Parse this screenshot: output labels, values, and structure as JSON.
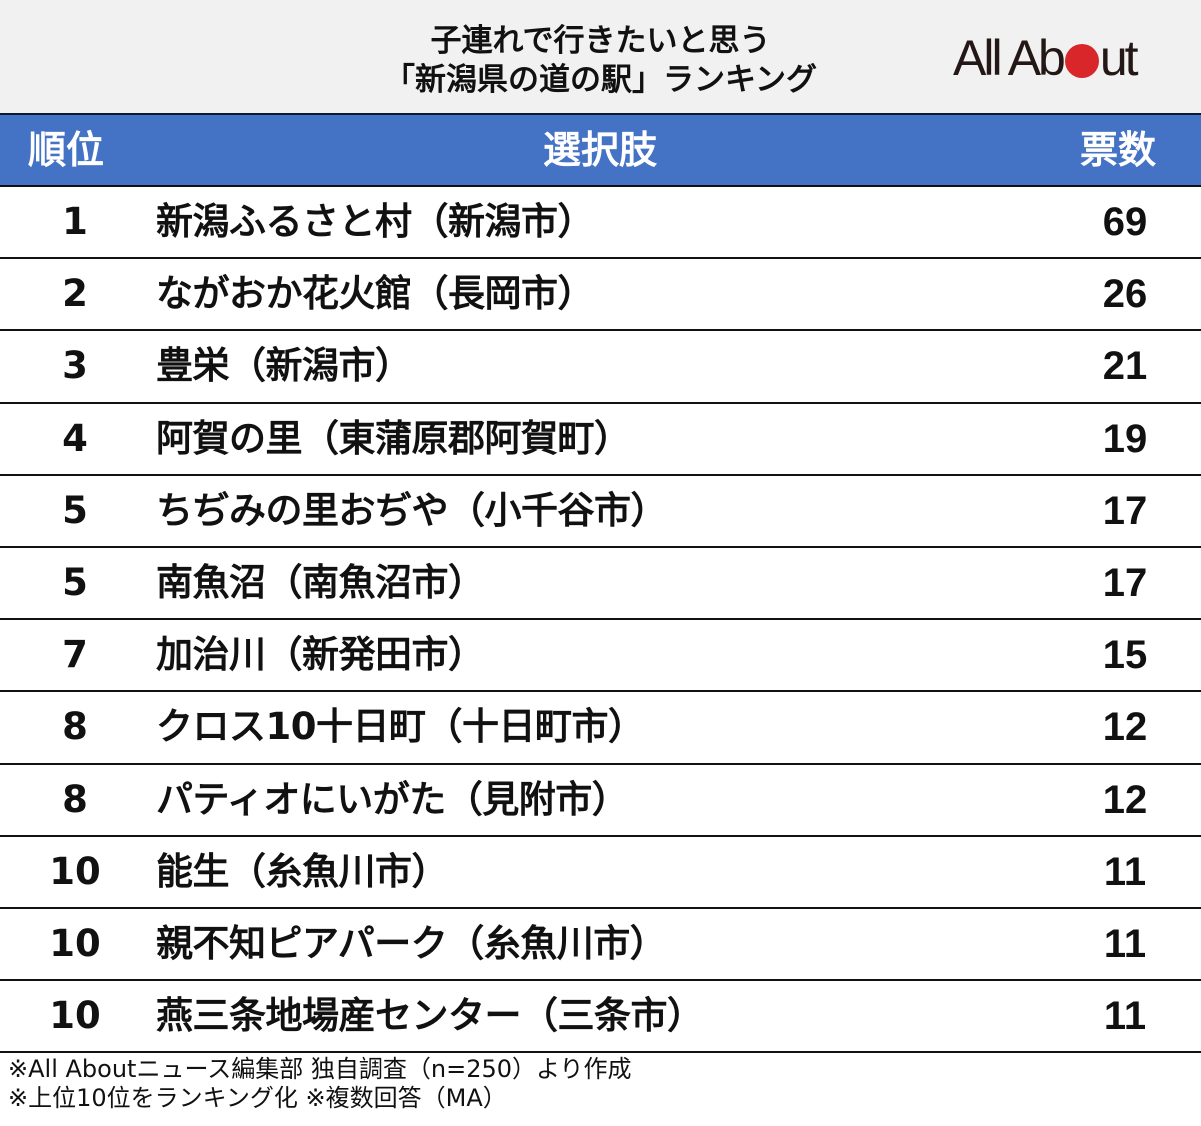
{
  "header": {
    "title_line1": "子連れで行きたいと思う",
    "title_line2": "「新潟県の道の駅」ランキング",
    "logo": {
      "pre": "All Ab",
      "post": "ut",
      "dot_color": "#d9262a"
    }
  },
  "table": {
    "columns": [
      "順位",
      "選択肢",
      "票数"
    ],
    "header_color": "#4472c4",
    "rows": [
      {
        "rank": "1",
        "name": "新潟ふるさと村（新潟市）",
        "votes": "69"
      },
      {
        "rank": "2",
        "name": "ながおか花火館（長岡市）",
        "votes": "26"
      },
      {
        "rank": "3",
        "name": "豊栄（新潟市）",
        "votes": "21"
      },
      {
        "rank": "4",
        "name": "阿賀の里（東蒲原郡阿賀町）",
        "votes": "19"
      },
      {
        "rank": "5",
        "name": "ちぢみの里おぢや（小千谷市）",
        "votes": "17"
      },
      {
        "rank": "5",
        "name": "南魚沼（南魚沼市）",
        "votes": "17"
      },
      {
        "rank": "7",
        "name": "加治川（新発田市）",
        "votes": "15"
      },
      {
        "rank": "8",
        "name": "クロス10十日町（十日町市）",
        "votes": "12"
      },
      {
        "rank": "8",
        "name": "パティオにいがた（見附市）",
        "votes": "12"
      },
      {
        "rank": "10",
        "name": "能生（糸魚川市）",
        "votes": "11"
      },
      {
        "rank": "10",
        "name": "親不知ピアパーク（糸魚川市）",
        "votes": "11"
      },
      {
        "rank": "10",
        "name": "燕三条地場産センター（三条市）",
        "votes": "11"
      }
    ]
  },
  "footer": {
    "note1": "※All Aboutニュース編集部 独自調査（n=250）より作成",
    "note2": "※上位10位をランキング化 ※複数回答（MA）"
  },
  "chart_data": {
    "type": "table",
    "title": "子連れで行きたいと思う「新潟県の道の駅」ランキング",
    "columns": [
      "順位",
      "選択肢",
      "票数"
    ],
    "categories": [
      "新潟ふるさと村（新潟市）",
      "ながおか花火館（長岡市）",
      "豊栄（新潟市）",
      "阿賀の里（東蒲原郡阿賀町）",
      "ちぢみの里おぢや（小千谷市）",
      "南魚沼（南魚沼市）",
      "加治川（新発田市）",
      "クロス10十日町（十日町市）",
      "パティオにいがた（見附市）",
      "能生（糸魚川市）",
      "親不知ピアパーク（糸魚川市）",
      "燕三条地場産センター（三条市）"
    ],
    "ranks": [
      1,
      2,
      3,
      4,
      5,
      5,
      7,
      8,
      8,
      10,
      10,
      10
    ],
    "values": [
      69,
      26,
      21,
      19,
      17,
      17,
      15,
      12,
      12,
      11,
      11,
      11
    ],
    "annotations": [
      "※All Aboutニュース編集部 独自調査（n=250）より作成",
      "※上位10位をランキング化 ※複数回答（MA）"
    ]
  }
}
